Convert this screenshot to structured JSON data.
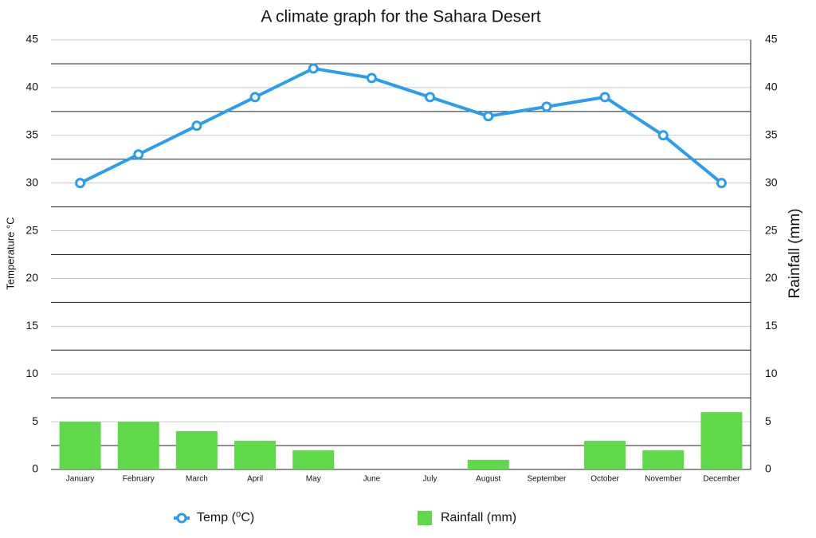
{
  "chart_data": {
    "type": "combo",
    "title": "A climate graph for the Sahara Desert",
    "y_label": "Temperature °C",
    "y2_label": "Rainfall (mm)",
    "categories": [
      "January",
      "February",
      "March",
      "April",
      "May",
      "June",
      "July",
      "August",
      "September",
      "October",
      "November",
      "December"
    ],
    "series": [
      {
        "name": "Temp (⁰C)",
        "type": "line",
        "color": "#2b9cf0",
        "axis": "y",
        "values": [
          30,
          33,
          36,
          39,
          42,
          41,
          39,
          37,
          38,
          39,
          35,
          30
        ]
      },
      {
        "name": "Rainfall (mm)",
        "type": "bar",
        "color": "#5fd84a",
        "axis": "y2",
        "values": [
          5,
          5,
          4,
          3,
          2,
          0,
          0,
          1,
          0,
          3,
          2,
          6
        ]
      }
    ],
    "ylim": [
      0,
      45
    ],
    "yticks": [
      0,
      5,
      10,
      15,
      20,
      25,
      30,
      35,
      40,
      45
    ],
    "y2lim": [
      0,
      45
    ],
    "y2ticks": [
      0,
      5,
      10,
      15,
      20,
      25,
      30,
      35,
      40,
      45
    ],
    "grid": true,
    "legend": "bottom"
  }
}
